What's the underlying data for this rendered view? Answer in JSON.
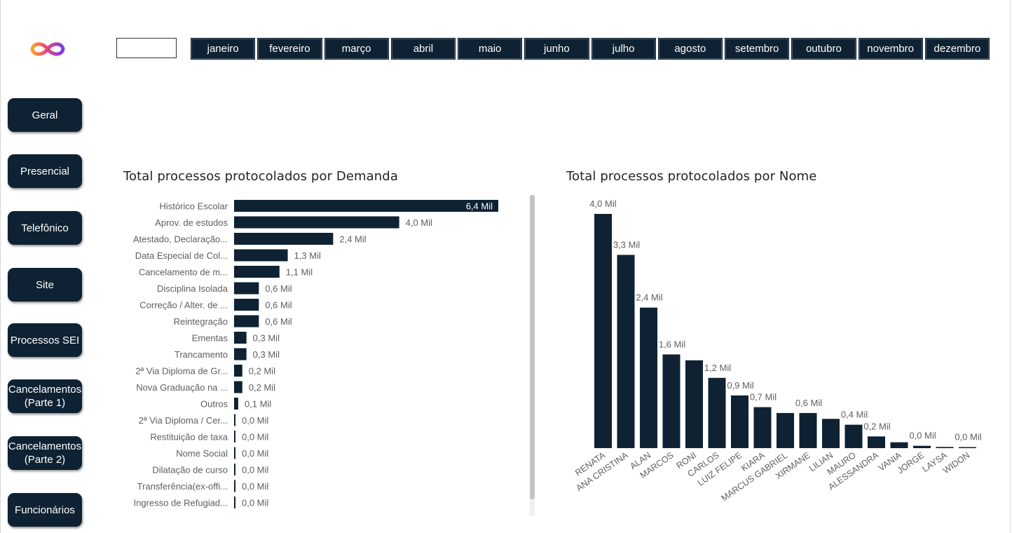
{
  "months": [
    "janeiro",
    "fevereiro",
    "março",
    "abril",
    "maio",
    "junho",
    "julho",
    "agosto",
    "setembro",
    "outubro",
    "novembro",
    "dezembro"
  ],
  "nav": [
    {
      "label": "Geral"
    },
    {
      "label": "Presencial"
    },
    {
      "label": "Telefônico"
    },
    {
      "label": "Site"
    },
    {
      "label": "Processos SEI"
    },
    {
      "label": "Cancelamentos\n(Parte 1)"
    },
    {
      "label": "Cancelamentos\n(Parte 2)"
    },
    {
      "label": "Funcionários"
    }
  ],
  "colors": {
    "bar": "#0e2233",
    "button": "#0e2233",
    "text": "#252423",
    "label": "#605e5c"
  },
  "chart_data": [
    {
      "type": "bar",
      "orientation": "horizontal",
      "title": "Total processos protocolados por Demanda",
      "categories": [
        "Histórico Escolar",
        "Aprov. de estudos",
        "Atestado, Declaração...",
        "Data Especial de Col...",
        "Cancelamento de m...",
        "Disciplina Isolada",
        "Correção / Alter. de ...",
        "Reintegração",
        "Ementas",
        "Trancamento",
        "2ª Via Diploma de Gr...",
        "Nova Graduação na ...",
        "Outros",
        "2ª Via Diploma / Cer...",
        "Restituição de taxa",
        "Nome Social",
        "Dilatação de curso",
        "Transferência(ex-offi...",
        "Ingresso de Refugiad..."
      ],
      "values": [
        6.4,
        4.0,
        2.4,
        1.3,
        1.1,
        0.6,
        0.6,
        0.6,
        0.3,
        0.3,
        0.2,
        0.2,
        0.1,
        0.0,
        0.0,
        0.0,
        0.0,
        0.0,
        0.0
      ],
      "labels": [
        "6,4 Mil",
        "4,0 Mil",
        "2,4 Mil",
        "1,3 Mil",
        "1,1 Mil",
        "0,6 Mil",
        "0,6 Mil",
        "0,6 Mil",
        "0,3 Mil",
        "0,3 Mil",
        "0,2 Mil",
        "0,2 Mil",
        "0,1 Mil",
        "0,0 Mil",
        "0,0 Mil",
        "0,0 Mil",
        "0,0 Mil",
        "0,0 Mil",
        "0,0 Mil"
      ],
      "unit": "Mil"
    },
    {
      "type": "bar",
      "orientation": "vertical",
      "title": "Total processos protocolados por Nome",
      "categories": [
        "RENATA",
        "ANA CRISTINA",
        "ALAN",
        "MARCOS",
        "RONI",
        "CARLOS",
        "LUIZ FELIPE",
        "KIARA",
        "MARCUS GABRIEL",
        "XIRMANE",
        "LILIAN",
        "MAURO",
        "ALESSANDRA",
        "VANIA",
        "JORGE",
        "LAYSA",
        "WIDON"
      ],
      "values": [
        4.0,
        3.3,
        2.4,
        1.6,
        1.5,
        1.2,
        0.9,
        0.7,
        0.6,
        0.6,
        0.5,
        0.4,
        0.2,
        0.1,
        0.04,
        0.02,
        0.01
      ],
      "labels": [
        "4,0 Mil",
        "3,3 Mil",
        "2,4 Mil",
        "1,6 Mil",
        "",
        "1,2 Mil",
        "0,9 Mil",
        "0,7 Mil",
        "",
        "0,6 Mil",
        "",
        "0,4 Mil",
        "0,2 Mil",
        "",
        "0,0 Mil",
        "",
        "0,0 Mil"
      ],
      "unit": "Mil"
    }
  ]
}
